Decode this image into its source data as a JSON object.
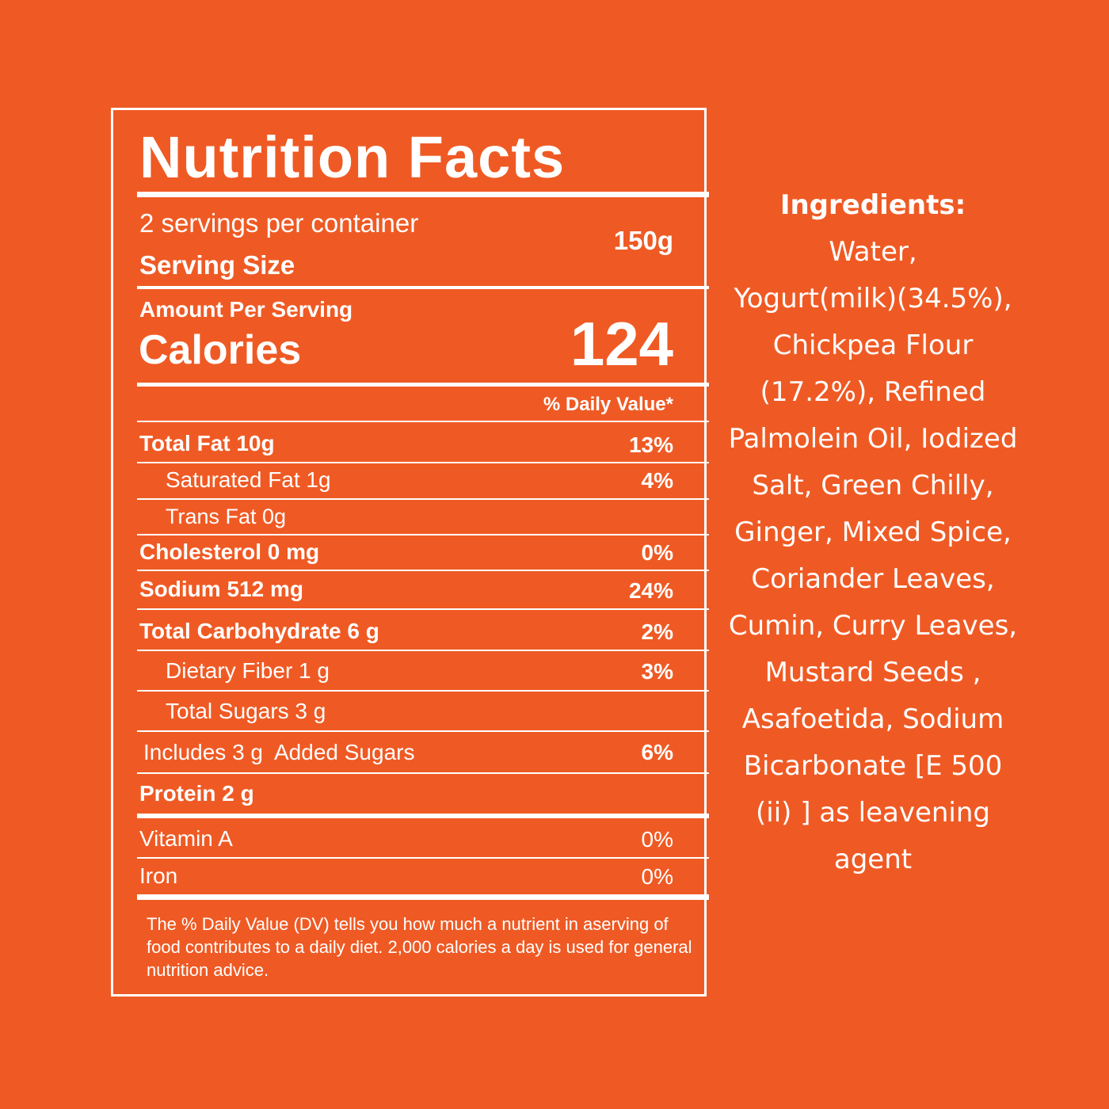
{
  "label": {
    "title": "Nutrition Facts",
    "servings_per_container": "2 servings per container",
    "serving_size_label": "Serving Size",
    "serving_size_value": "150g",
    "amount_per_serving": "Amount Per Serving",
    "calories_label": "Calories",
    "calories_value": "124",
    "daily_value_header": "% Daily Value*",
    "rows": [
      {
        "name": "Total Fat 10g",
        "dv": "13%"
      },
      {
        "name": "Saturated Fat 1g",
        "dv": "4%"
      },
      {
        "name": "Trans Fat 0g",
        "dv": ""
      },
      {
        "name": "Cholesterol 0 mg",
        "dv": "0%"
      },
      {
        "name": "Sodium 512 mg",
        "dv": "24%"
      },
      {
        "name": "Total Carbohydrate 6 g",
        "dv": "2%"
      },
      {
        "name": "Dietary Fiber 1 g",
        "dv": "3%"
      },
      {
        "name": "Total Sugars 3 g",
        "dv": ""
      },
      {
        "name": "Includes 3 g  Added Sugars",
        "dv": "6%"
      },
      {
        "name": "Protein 2 g",
        "dv": ""
      },
      {
        "name": "Vitamin A",
        "dv": "0%"
      },
      {
        "name": "Iron",
        "dv": "0%"
      }
    ],
    "footnote": "The % Daily Value (DV) tells you how much a nutrient in aserving of food contributes to a daily diet. 2,000 calories a day is used for general nutrition advice."
  },
  "ingredients": {
    "title": "Ingredients:",
    "lines": [
      "Water,",
      "Yogurt(milk)(34.5%),",
      "Chickpea Flour",
      "(17.2%), Refined",
      "Palmolein Oil, Iodized",
      "Salt, Green Chilly,",
      "Ginger, Mixed Spice,",
      "Coriander Leaves,",
      "Cumin, Curry Leaves,",
      "Mustard Seeds ,",
      "Asafoetida, Sodium",
      "Bicarbonate [E 500",
      "(ii) ] as leavening",
      "agent"
    ]
  }
}
